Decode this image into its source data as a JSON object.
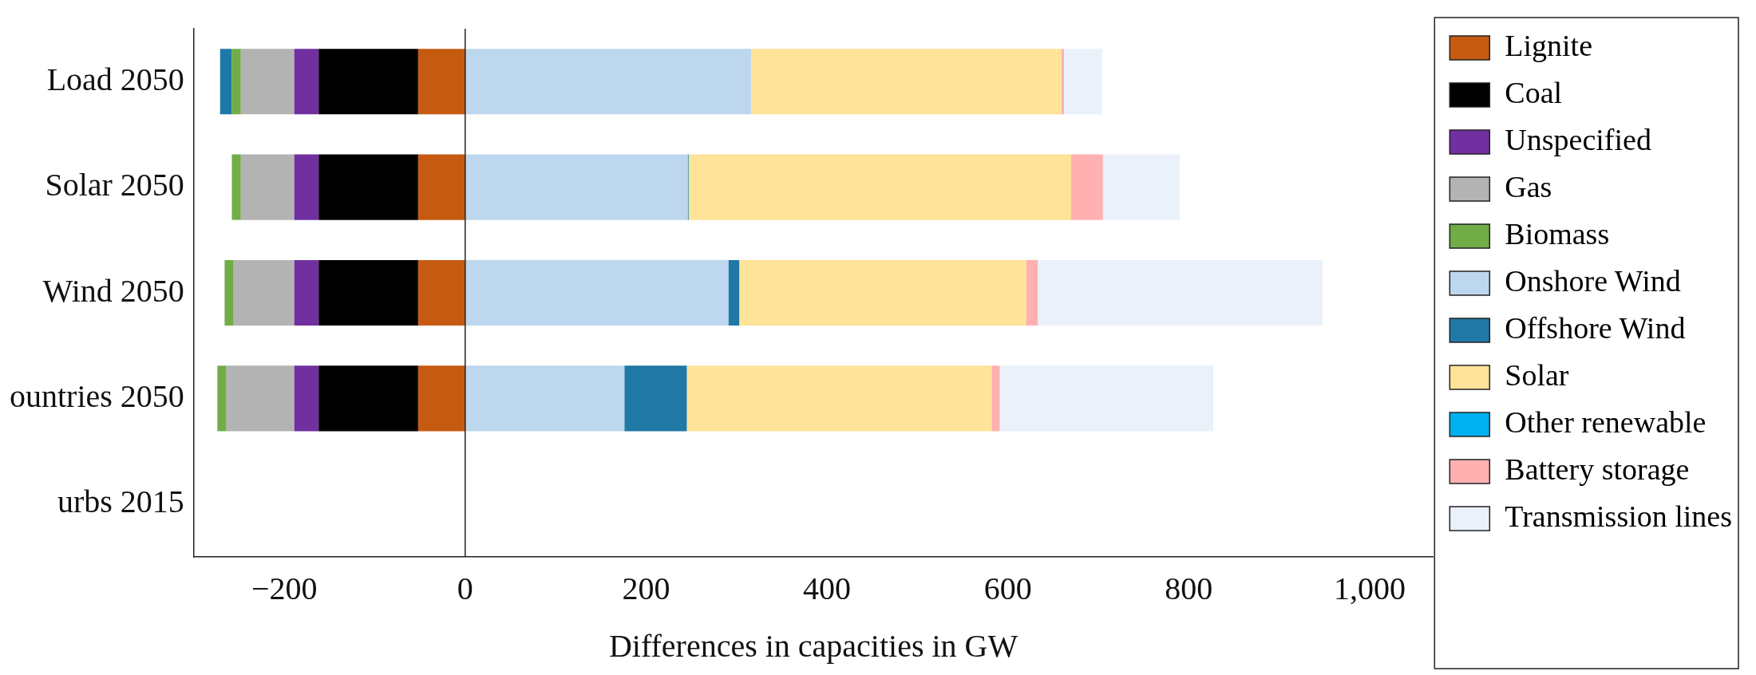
{
  "chart_data": {
    "type": "bar",
    "orientation": "horizontal",
    "stacked": true,
    "xlabel": "Differences in capacities in GW",
    "categories": [
      "Load 2050",
      "Solar 2050",
      "Wind 2050",
      "ountries 2050",
      "urbs 2015"
    ],
    "xlim": [
      -300,
      1070
    ],
    "xticks": [
      {
        "value": -200,
        "label": "−200"
      },
      0,
      200,
      400,
      600,
      800,
      {
        "value": 1000,
        "label": "1,000"
      }
    ],
    "grid": false,
    "legend": "right",
    "ref_lines": [
      {
        "axis": "x",
        "value": 0
      }
    ],
    "series": [
      {
        "name": "Lignite",
        "color": "#c55a11",
        "values": [
          -52,
          -52,
          -52,
          -52,
          0
        ]
      },
      {
        "name": "Coal",
        "color": "#000000",
        "values": [
          -110,
          -110,
          -110,
          -110,
          0
        ]
      },
      {
        "name": "Unspecified",
        "color": "#7030a0",
        "values": [
          -27,
          -27,
          -27,
          -27,
          0
        ]
      },
      {
        "name": "Gas",
        "color": "#b3b3b3",
        "values": [
          -59,
          -59,
          -67,
          -75,
          0
        ]
      },
      {
        "name": "Biomass",
        "color": "#70ad47",
        "values": [
          -10,
          -10,
          -10,
          -10,
          0
        ]
      },
      {
        "name": "Onshore Wind",
        "color": "#bdd7ee",
        "values": [
          316,
          246,
          291,
          176,
          0
        ]
      },
      {
        "name": "Offshore Wind",
        "color": "#1f78a6",
        "values": [
          -13,
          1,
          12,
          69,
          0
        ]
      },
      {
        "name": "Solar",
        "color": "#ffe399",
        "values": [
          343,
          423,
          317,
          337,
          0
        ]
      },
      {
        "name": "Other renewable",
        "color": "#00b0f0",
        "values": [
          0,
          0,
          0,
          0,
          0
        ]
      },
      {
        "name": "Battery storage",
        "color": "#ffb0b0",
        "values": [
          3,
          35,
          13,
          9,
          0
        ]
      },
      {
        "name": "Transmission lines",
        "color": "#eaf1fa",
        "values": [
          42,
          85,
          315,
          236,
          0
        ]
      }
    ]
  }
}
